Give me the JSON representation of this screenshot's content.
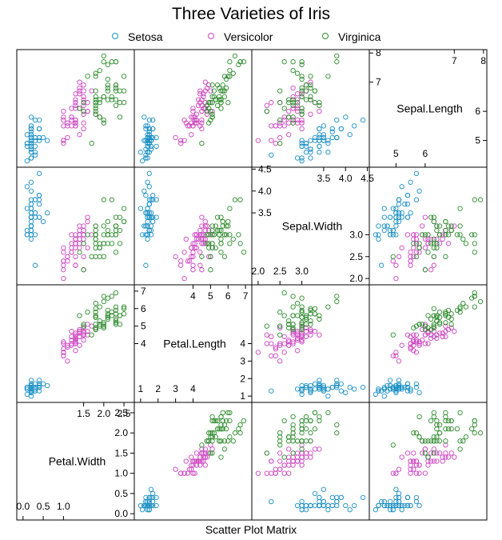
{
  "chart_data": {
    "type": "scatter",
    "title": "Three Varieties of Iris",
    "xlabel": "Scatter Plot Matrix",
    "variables": [
      "Petal.Width",
      "Petal.Length",
      "Sepal.Width",
      "Sepal.Length"
    ],
    "legend_placement": "top",
    "grid": false,
    "series": [
      {
        "name": "Setosa",
        "color": "#1a8fc4"
      },
      {
        "name": "Versicolor",
        "color": "#cc44c0"
      },
      {
        "name": "Virginica",
        "color": "#2e8b2e"
      }
    ],
    "diagonal_panels": [
      {
        "variable": "Petal.Width",
        "range": [
          0.0,
          2.6
        ],
        "upper_ticks": [
          "1.5",
          "2.0",
          "2.5"
        ],
        "upper_tick_values": [
          1.5,
          2.0,
          2.5
        ],
        "lower_ticks": [
          "0.0",
          "0.5",
          "1.0"
        ],
        "lower_tick_values": [
          0.0,
          0.5,
          1.0
        ],
        "right_ticks": [
          "2.5",
          "2.0",
          "1.5",
          "1.0",
          "0.5",
          "0.0"
        ],
        "right_tick_values": [
          2.5,
          2.0,
          1.5,
          1.0,
          0.5,
          0.0
        ]
      },
      {
        "variable": "Petal.Length",
        "range": [
          1.0,
          7.0
        ],
        "upper_ticks": [
          "4",
          "5",
          "6",
          "7"
        ],
        "upper_tick_values": [
          4,
          5,
          6,
          7
        ],
        "lower_ticks": [
          "1",
          "2",
          "3",
          "4"
        ],
        "lower_tick_values": [
          1,
          2,
          3,
          4
        ],
        "left_ticks": [
          "7",
          "6",
          "5",
          "4"
        ],
        "left_tick_values": [
          7,
          6,
          5,
          4
        ],
        "right_ticks": [
          "4",
          "3",
          "2",
          "1"
        ],
        "right_tick_values": [
          4,
          3,
          2,
          1
        ]
      },
      {
        "variable": "Sepal.Width",
        "range": [
          2.0,
          4.4
        ],
        "upper_ticks": [
          "3.5",
          "4.0",
          "4.5"
        ],
        "upper_tick_values": [
          3.5,
          4.0,
          4.5
        ],
        "lower_ticks": [
          "2.0",
          "2.5",
          "3.0"
        ],
        "lower_tick_values": [
          2.0,
          2.5,
          3.0
        ],
        "left_ticks": [
          "4.5",
          "4.0",
          "3.5"
        ],
        "left_tick_values": [
          4.5,
          4.0,
          3.5
        ],
        "right_ticks": [
          "3.0",
          "2.5",
          "2.0"
        ],
        "right_tick_values": [
          3.0,
          2.5,
          2.0
        ]
      },
      {
        "variable": "Sepal.Length",
        "range": [
          4.3,
          7.9
        ],
        "upper_ticks": [
          "7",
          "8"
        ],
        "upper_tick_values": [
          7,
          8
        ],
        "lower_ticks": [
          "5",
          "6"
        ],
        "lower_tick_values": [
          5,
          6
        ],
        "left_ticks": [
          "8",
          "7"
        ],
        "left_tick_values": [
          8,
          7
        ],
        "right_ticks": [
          "6",
          "5"
        ],
        "right_tick_values": [
          6,
          5
        ]
      }
    ],
    "observations": {
      "Setosa": {
        "Sepal.Length": [
          5.1,
          4.9,
          4.7,
          4.6,
          5.0,
          5.4,
          4.6,
          5.0,
          4.4,
          4.9,
          5.4,
          4.8,
          4.8,
          4.3,
          5.8,
          5.7,
          5.4,
          5.1,
          5.7,
          5.1,
          5.4,
          5.1,
          4.6,
          5.1,
          4.8,
          5.0,
          5.0,
          5.2,
          5.2,
          4.7,
          4.8,
          5.4,
          5.2,
          5.5,
          4.9,
          5.0,
          5.5,
          4.9,
          4.4,
          5.1,
          5.0,
          4.5,
          4.4,
          5.0,
          5.1,
          4.8,
          5.1,
          4.6,
          5.3,
          5.0
        ],
        "Sepal.Width": [
          3.5,
          3.0,
          3.2,
          3.1,
          3.6,
          3.9,
          3.4,
          3.4,
          2.9,
          3.1,
          3.7,
          3.4,
          3.0,
          3.0,
          4.0,
          4.4,
          3.9,
          3.5,
          3.8,
          3.8,
          3.4,
          3.7,
          3.6,
          3.3,
          3.4,
          3.0,
          3.4,
          3.5,
          3.4,
          3.2,
          3.1,
          3.4,
          4.1,
          4.2,
          3.1,
          3.2,
          3.5,
          3.6,
          3.0,
          3.4,
          3.5,
          2.3,
          3.2,
          3.5,
          3.8,
          3.0,
          3.8,
          3.2,
          3.7,
          3.3
        ],
        "Petal.Length": [
          1.4,
          1.4,
          1.3,
          1.5,
          1.4,
          1.7,
          1.4,
          1.5,
          1.4,
          1.5,
          1.5,
          1.6,
          1.4,
          1.1,
          1.2,
          1.5,
          1.3,
          1.4,
          1.7,
          1.5,
          1.7,
          1.5,
          1.0,
          1.7,
          1.9,
          1.6,
          1.6,
          1.5,
          1.4,
          1.6,
          1.6,
          1.5,
          1.5,
          1.4,
          1.5,
          1.2,
          1.3,
          1.4,
          1.3,
          1.5,
          1.3,
          1.3,
          1.3,
          1.6,
          1.9,
          1.4,
          1.6,
          1.4,
          1.5,
          1.4
        ],
        "Petal.Width": [
          0.2,
          0.2,
          0.2,
          0.2,
          0.2,
          0.4,
          0.3,
          0.2,
          0.2,
          0.1,
          0.2,
          0.2,
          0.1,
          0.1,
          0.2,
          0.4,
          0.4,
          0.3,
          0.3,
          0.3,
          0.2,
          0.4,
          0.2,
          0.5,
          0.2,
          0.2,
          0.4,
          0.2,
          0.2,
          0.2,
          0.2,
          0.4,
          0.1,
          0.2,
          0.2,
          0.2,
          0.2,
          0.1,
          0.2,
          0.2,
          0.3,
          0.3,
          0.2,
          0.6,
          0.4,
          0.3,
          0.2,
          0.2,
          0.2,
          0.2
        ]
      },
      "Versicolor": {
        "Sepal.Length": [
          7.0,
          6.4,
          6.9,
          5.5,
          6.5,
          5.7,
          6.3,
          4.9,
          6.6,
          5.2,
          5.0,
          5.9,
          6.0,
          6.1,
          5.6,
          6.7,
          5.6,
          5.8,
          6.2,
          5.6,
          5.9,
          6.1,
          6.3,
          6.1,
          6.4,
          6.6,
          6.8,
          6.7,
          6.0,
          5.7,
          5.5,
          5.5,
          5.8,
          6.0,
          5.4,
          6.0,
          6.7,
          6.3,
          5.6,
          5.5,
          5.5,
          6.1,
          5.8,
          5.0,
          5.6,
          5.7,
          5.7,
          6.2,
          5.1,
          5.7
        ],
        "Sepal.Width": [
          3.2,
          3.2,
          3.1,
          2.3,
          2.8,
          2.8,
          3.3,
          2.4,
          2.9,
          2.7,
          2.0,
          3.0,
          2.2,
          2.9,
          2.9,
          3.1,
          3.0,
          2.7,
          2.2,
          2.5,
          3.2,
          2.8,
          2.5,
          2.8,
          2.9,
          3.0,
          2.8,
          3.0,
          2.9,
          2.6,
          2.4,
          2.4,
          2.7,
          2.7,
          3.0,
          3.4,
          3.1,
          2.3,
          3.0,
          2.5,
          2.6,
          3.0,
          2.6,
          2.3,
          2.7,
          3.0,
          2.9,
          2.9,
          2.5,
          2.8
        ],
        "Petal.Length": [
          4.7,
          4.5,
          4.9,
          4.0,
          4.6,
          4.5,
          4.7,
          3.3,
          4.6,
          3.9,
          3.5,
          4.2,
          4.0,
          4.7,
          3.6,
          4.4,
          4.5,
          4.1,
          4.5,
          3.9,
          4.8,
          4.0,
          4.9,
          4.7,
          4.3,
          4.4,
          4.8,
          5.0,
          4.5,
          3.5,
          3.8,
          3.7,
          3.9,
          5.1,
          4.5,
          4.5,
          4.7,
          4.4,
          4.1,
          4.0,
          4.4,
          4.6,
          4.0,
          3.3,
          4.2,
          4.2,
          4.2,
          4.3,
          3.0,
          4.1
        ],
        "Petal.Width": [
          1.4,
          1.5,
          1.5,
          1.3,
          1.5,
          1.3,
          1.6,
          1.0,
          1.3,
          1.4,
          1.0,
          1.5,
          1.0,
          1.4,
          1.3,
          1.4,
          1.5,
          1.0,
          1.5,
          1.1,
          1.8,
          1.3,
          1.5,
          1.2,
          1.3,
          1.4,
          1.4,
          1.7,
          1.5,
          1.0,
          1.1,
          1.0,
          1.2,
          1.6,
          1.5,
          1.6,
          1.5,
          1.3,
          1.3,
          1.3,
          1.2,
          1.4,
          1.2,
          1.0,
          1.3,
          1.2,
          1.3,
          1.3,
          1.1,
          1.3
        ]
      },
      "Virginica": {
        "Sepal.Length": [
          6.3,
          5.8,
          7.1,
          6.3,
          6.5,
          7.6,
          4.9,
          7.3,
          6.7,
          7.2,
          6.5,
          6.4,
          6.8,
          5.7,
          5.8,
          6.4,
          6.5,
          7.7,
          7.7,
          6.0,
          6.9,
          5.6,
          7.7,
          6.3,
          6.7,
          7.2,
          6.2,
          6.1,
          6.4,
          7.2,
          7.4,
          7.9,
          6.4,
          6.3,
          6.1,
          7.7,
          6.3,
          6.4,
          6.0,
          6.9,
          6.7,
          6.9,
          5.8,
          6.8,
          6.7,
          6.7,
          6.3,
          6.5,
          6.2,
          5.9
        ],
        "Sepal.Width": [
          3.3,
          2.7,
          3.0,
          2.9,
          3.0,
          3.0,
          2.5,
          2.9,
          2.5,
          3.6,
          3.2,
          2.7,
          3.0,
          2.5,
          2.8,
          3.2,
          3.0,
          3.8,
          2.6,
          2.2,
          3.2,
          2.8,
          2.8,
          2.7,
          3.3,
          3.2,
          2.8,
          3.0,
          2.8,
          3.0,
          2.8,
          3.8,
          2.8,
          2.8,
          2.6,
          3.0,
          3.4,
          3.1,
          3.0,
          3.1,
          3.1,
          3.1,
          2.7,
          3.2,
          3.3,
          3.0,
          2.5,
          3.0,
          3.4,
          3.0
        ],
        "Petal.Length": [
          6.0,
          5.1,
          5.9,
          5.6,
          5.8,
          6.6,
          4.5,
          6.3,
          5.8,
          6.1,
          5.1,
          5.3,
          5.5,
          5.0,
          5.1,
          5.3,
          5.5,
          6.7,
          6.9,
          5.0,
          5.7,
          4.9,
          6.7,
          4.9,
          5.7,
          6.0,
          4.8,
          4.9,
          5.6,
          5.8,
          6.1,
          6.4,
          5.6,
          5.1,
          5.6,
          6.1,
          5.6,
          5.5,
          4.8,
          5.4,
          5.6,
          5.1,
          5.1,
          5.9,
          5.7,
          5.2,
          5.0,
          5.2,
          5.4,
          5.1
        ],
        "Petal.Width": [
          2.5,
          1.9,
          2.1,
          1.8,
          2.2,
          2.1,
          1.7,
          1.8,
          1.8,
          2.5,
          2.0,
          1.9,
          2.1,
          2.0,
          2.4,
          2.3,
          1.8,
          2.2,
          2.3,
          1.5,
          2.3,
          2.0,
          2.0,
          1.8,
          2.1,
          1.8,
          1.8,
          1.8,
          2.1,
          1.6,
          1.9,
          2.0,
          2.2,
          1.5,
          1.4,
          2.3,
          2.4,
          1.8,
          1.8,
          2.1,
          2.4,
          2.3,
          1.9,
          2.3,
          2.5,
          2.3,
          1.9,
          2.0,
          2.3,
          1.8
        ]
      }
    }
  }
}
